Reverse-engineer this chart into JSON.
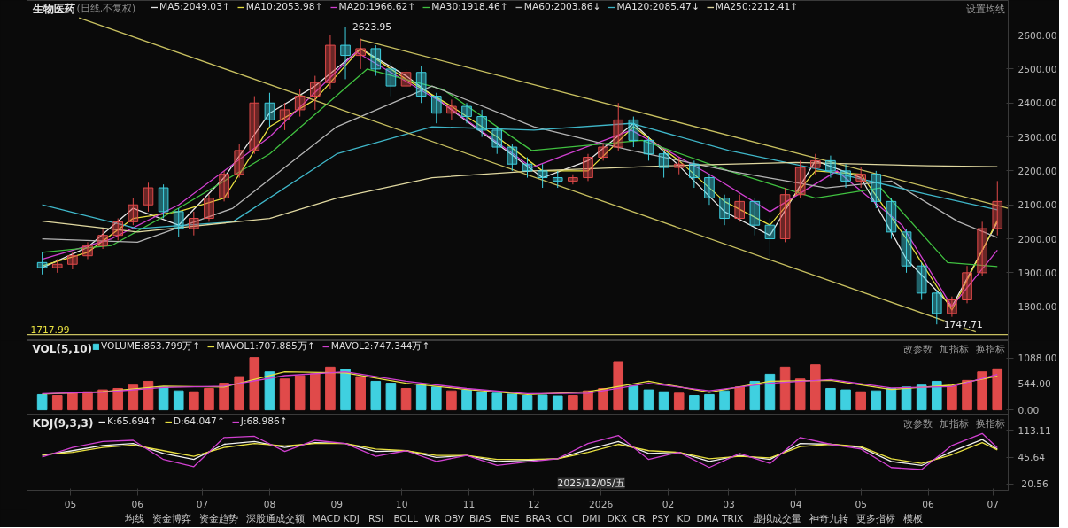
{
  "chart_data": [
    {
      "type": "candlestick",
      "title": "生物医药",
      "subtitle": "(日线,不复权)",
      "legend": "top",
      "tick_labels": "y",
      "grid": false,
      "xlim": [
        "2025-04-11",
        "2026-07-08"
      ],
      "ylim": [
        1700,
        2702
      ],
      "yticks": [
        {
          "value": 1800,
          "label": "1800.00"
        },
        {
          "value": 1900,
          "label": "1900.00"
        },
        {
          "value": 2000,
          "label": "2000.00"
        },
        {
          "value": 2100,
          "label": "2100.00"
        },
        {
          "value": 2200,
          "label": "2200.00"
        },
        {
          "value": 2300,
          "label": "2300.00"
        },
        {
          "value": 2400,
          "label": "2400.00"
        },
        {
          "value": 2500,
          "label": "2500.00"
        },
        {
          "value": 2600,
          "label": "2600.00"
        }
      ],
      "x": [
        "2025-04-18",
        "2025-04-25",
        "2025-05-02",
        "2025-05-09",
        "2025-05-16",
        "2025-05-23",
        "2025-05-30",
        "2025-06-06",
        "2025-06-13",
        "2025-06-20",
        "2025-06-27",
        "2025-07-04",
        "2025-07-11",
        "2025-07-18",
        "2025-07-25",
        "2025-08-01",
        "2025-08-08",
        "2025-08-15",
        "2025-08-22",
        "2025-08-29",
        "2025-09-05",
        "2025-09-12",
        "2025-09-19",
        "2025-09-26",
        "2025-10-03",
        "2025-10-10",
        "2025-10-17",
        "2025-10-24",
        "2025-10-31",
        "2025-11-07",
        "2025-11-14",
        "2025-11-21",
        "2025-11-28",
        "2025-12-05",
        "2025-12-12",
        "2025-12-19",
        "2025-12-26",
        "2026-01-02",
        "2026-01-09",
        "2026-01-16",
        "2026-01-23",
        "2026-01-30",
        "2026-02-06",
        "2026-02-13",
        "2026-02-20",
        "2026-02-27",
        "2026-03-06",
        "2026-03-13",
        "2026-03-20",
        "2026-03-27",
        "2026-04-03",
        "2026-04-10",
        "2026-04-17",
        "2026-04-24",
        "2026-05-01",
        "2026-05-08",
        "2026-05-15",
        "2026-05-22",
        "2026-05-29",
        "2026-06-05",
        "2026-06-12",
        "2026-06-19",
        "2026-06-26",
        "2026-07-03"
      ],
      "ohlc": [
        [
          1930,
          1960,
          1895,
          1915
        ],
        [
          1915,
          1940,
          1900,
          1925
        ],
        [
          1925,
          1960,
          1910,
          1950
        ],
        [
          1950,
          1990,
          1940,
          1980
        ],
        [
          1980,
          2030,
          1970,
          2010
        ],
        [
          2010,
          2060,
          1995,
          2050
        ],
        [
          2050,
          2120,
          2040,
          2100
        ],
        [
          2100,
          2165,
          2080,
          2150
        ],
        [
          2150,
          2160,
          2060,
          2080
        ],
        [
          2080,
          2090,
          2005,
          2030
        ],
        [
          2030,
          2080,
          2010,
          2060
        ],
        [
          2060,
          2130,
          2050,
          2120
        ],
        [
          2120,
          2200,
          2110,
          2190
        ],
        [
          2190,
          2280,
          2180,
          2260
        ],
        [
          2260,
          2420,
          2250,
          2400
        ],
        [
          2400,
          2430,
          2330,
          2350
        ],
        [
          2350,
          2400,
          2320,
          2380
        ],
        [
          2380,
          2440,
          2360,
          2420
        ],
        [
          2420,
          2480,
          2380,
          2460
        ],
        [
          2460,
          2600,
          2440,
          2570
        ],
        [
          2570,
          2623.95,
          2470,
          2540
        ],
        [
          2540,
          2590,
          2500,
          2560
        ],
        [
          2560,
          2570,
          2480,
          2500
        ],
        [
          2500,
          2520,
          2420,
          2450
        ],
        [
          2450,
          2500,
          2440,
          2490
        ],
        [
          2490,
          2510,
          2400,
          2420
        ],
        [
          2420,
          2430,
          2340,
          2370
        ],
        [
          2370,
          2410,
          2350,
          2390
        ],
        [
          2390,
          2400,
          2340,
          2360
        ],
        [
          2360,
          2380,
          2300,
          2320
        ],
        [
          2320,
          2330,
          2250,
          2270
        ],
        [
          2270,
          2280,
          2200,
          2220
        ],
        [
          2220,
          2240,
          2180,
          2200
        ],
        [
          2200,
          2220,
          2150,
          2180
        ],
        [
          2180,
          2200,
          2150,
          2170
        ],
        [
          2170,
          2190,
          2160,
          2180
        ],
        [
          2180,
          2250,
          2170,
          2240
        ],
        [
          2240,
          2280,
          2230,
          2270
        ],
        [
          2270,
          2400,
          2260,
          2350
        ],
        [
          2350,
          2360,
          2270,
          2290
        ],
        [
          2290,
          2300,
          2230,
          2250
        ],
        [
          2250,
          2260,
          2180,
          2210
        ],
        [
          2210,
          2240,
          2190,
          2220
        ],
        [
          2220,
          2230,
          2150,
          2180
        ],
        [
          2180,
          2190,
          2100,
          2120
        ],
        [
          2120,
          2130,
          2040,
          2060
        ],
        [
          2060,
          2130,
          2050,
          2110
        ],
        [
          2110,
          2120,
          2010,
          2040
        ],
        [
          2040,
          2060,
          1940,
          2000
        ],
        [
          2000,
          2150,
          1990,
          2130
        ],
        [
          2130,
          2230,
          2120,
          2210
        ],
        [
          2210,
          2250,
          2190,
          2230
        ],
        [
          2230,
          2245,
          2180,
          2200
        ],
        [
          2200,
          2220,
          2150,
          2170
        ],
        [
          2170,
          2210,
          2150,
          2190
        ],
        [
          2190,
          2200,
          2090,
          2110
        ],
        [
          2110,
          2120,
          2000,
          2020
        ],
        [
          2020,
          2030,
          1900,
          1920
        ],
        [
          1920,
          1930,
          1820,
          1840
        ],
        [
          1840,
          1850,
          1747.71,
          1780
        ],
        [
          1780,
          1830,
          1770,
          1820
        ],
        [
          1820,
          1920,
          1810,
          1900
        ],
        [
          1900,
          2050,
          1890,
          2030
        ],
        [
          2030,
          2170,
          2010,
          2110
        ]
      ],
      "series": [
        {
          "type": "line",
          "name": "MA5:2049.03↑",
          "color": "#e6e6e6",
          "x": [
            "2025-04-18",
            "2025-05-09",
            "2025-05-30",
            "2025-06-20",
            "2025-07-11",
            "2025-08-01",
            "2025-08-22",
            "2025-09-12",
            "2025-10-03",
            "2025-10-24",
            "2025-11-14",
            "2025-12-05",
            "2025-12-26",
            "2026-01-16",
            "2026-02-06",
            "2026-02-27",
            "2026-03-20",
            "2026-04-10",
            "2026-05-01",
            "2026-05-22",
            "2026-06-12",
            "2026-07-03"
          ],
          "values": [
            1915,
            1975,
            2090,
            2040,
            2180,
            2370,
            2450,
            2560,
            2480,
            2380,
            2280,
            2180,
            2230,
            2340,
            2215,
            2080,
            2010,
            2230,
            2180,
            1940,
            1800,
            2049.03
          ]
        },
        {
          "type": "line",
          "name": "MA10:2053.98↑",
          "color": "#e8e040",
          "x": [
            "2025-04-18",
            "2025-05-09",
            "2025-05-30",
            "2025-06-20",
            "2025-07-11",
            "2025-08-01",
            "2025-08-22",
            "2025-09-12",
            "2025-10-03",
            "2025-10-24",
            "2025-11-14",
            "2025-12-05",
            "2025-12-26",
            "2026-01-16",
            "2026-02-06",
            "2026-02-27",
            "2026-03-20",
            "2026-04-10",
            "2026-05-01",
            "2026-05-22",
            "2026-06-12",
            "2026-07-03"
          ],
          "values": [
            1920,
            1960,
            2060,
            2080,
            2120,
            2330,
            2410,
            2560,
            2470,
            2390,
            2300,
            2200,
            2200,
            2330,
            2230,
            2110,
            2040,
            2200,
            2190,
            2000,
            1790,
            2053.98
          ]
        },
        {
          "type": "line",
          "name": "MA20:1966.62↑",
          "color": "#d040d0",
          "x": [
            "2025-04-18",
            "2025-05-20",
            "2025-06-20",
            "2025-08-01",
            "2025-09-10",
            "2025-10-20",
            "2025-11-30",
            "2026-01-15",
            "2026-02-20",
            "2026-03-20",
            "2026-04-20",
            "2026-05-20",
            "2026-06-12",
            "2026-07-03"
          ],
          "values": [
            1940,
            2000,
            2100,
            2300,
            2550,
            2400,
            2210,
            2320,
            2190,
            2080,
            2200,
            2040,
            1800,
            1966.62
          ]
        },
        {
          "type": "line",
          "name": "MA30:1918.46↑",
          "color": "#40c040",
          "x": [
            "2025-04-18",
            "2025-05-20",
            "2025-06-20",
            "2025-08-01",
            "2025-09-15",
            "2025-10-20",
            "2025-11-30",
            "2026-01-20",
            "2026-03-01",
            "2026-04-10",
            "2026-05-10",
            "2026-06-10",
            "2026-07-03"
          ],
          "values": [
            1960,
            1980,
            2090,
            2250,
            2500,
            2440,
            2260,
            2290,
            2200,
            2120,
            2150,
            1930,
            1918.46
          ]
        },
        {
          "type": "line",
          "name": "MA60:2003.86↓",
          "color": "#b4b4b4",
          "x": [
            "2025-04-18",
            "2025-06-01",
            "2025-07-15",
            "2025-09-01",
            "2025-10-15",
            "2025-12-01",
            "2026-01-15",
            "2026-03-01",
            "2026-04-15",
            "2026-05-15",
            "2026-06-15",
            "2026-07-03"
          ],
          "values": [
            2000,
            1990,
            2090,
            2330,
            2450,
            2330,
            2260,
            2200,
            2150,
            2170,
            2050,
            2003.86
          ]
        },
        {
          "type": "line",
          "name": "MA120:2085.47↓",
          "color": "#3fb6c8",
          "x": [
            "2025-04-18",
            "2025-06-01",
            "2025-07-15",
            "2025-09-01",
            "2025-10-15",
            "2025-12-01",
            "2026-01-15",
            "2026-03-01",
            "2026-04-15",
            "2026-06-01",
            "2026-07-03"
          ],
          "values": [
            2100,
            2030,
            2050,
            2250,
            2330,
            2320,
            2340,
            2260,
            2200,
            2130,
            2085.47
          ]
        },
        {
          "type": "line",
          "name": "MA250:2212.41↑",
          "color": "#e0d8a0",
          "x": [
            "2025-04-18",
            "2025-06-01",
            "2025-08-01",
            "2025-09-01",
            "2025-10-15",
            "2025-12-01",
            "2026-02-01",
            "2026-04-01",
            "2026-06-01",
            "2026-07-03"
          ],
          "values": [
            2052,
            2020,
            2060,
            2120,
            2180,
            2200,
            2215,
            2225,
            2215,
            2212.41
          ]
        },
        {
          "type": "line",
          "color": "#c8c060",
          "x": [
            "2025-05-05",
            "2026-06-23"
          ],
          "values": [
            2651,
            1726
          ]
        },
        {
          "type": "line",
          "color": "#c8c060",
          "x": [
            "2025-09-12",
            "2026-07-08"
          ],
          "values": [
            2587,
            2090
          ]
        }
      ],
      "ref_lines": [
        {
          "axis": "y",
          "value": 1717.99,
          "label": "1717.99",
          "color": "#c8c060"
        }
      ],
      "annotations": [
        {
          "text": "2623.95",
          "x": "2025-09-05",
          "y": 2623.95
        },
        {
          "text": "1747.71",
          "x": "2026-06-05",
          "y": 1747.71
        },
        "设置均线"
      ]
    },
    {
      "type": "bar",
      "title": "VOL(5,10)",
      "legend": "top",
      "tick_labels": "y",
      "grid": false,
      "xlim": [
        "2025-04-11",
        "2026-07-08"
      ],
      "ylim": [
        -110,
        1457
      ],
      "yticks": [
        {
          "value": 0,
          "label": "0.00"
        },
        {
          "value": 544,
          "label": "544.00"
        },
        {
          "value": 1088,
          "label": "1088.00"
        }
      ],
      "x": [
        "2025-04-18",
        "2025-04-25",
        "2025-05-02",
        "2025-05-09",
        "2025-05-16",
        "2025-05-23",
        "2025-05-30",
        "2025-06-06",
        "2025-06-13",
        "2025-06-20",
        "2025-06-27",
        "2025-07-04",
        "2025-07-11",
        "2025-07-18",
        "2025-07-25",
        "2025-08-01",
        "2025-08-08",
        "2025-08-15",
        "2025-08-22",
        "2025-08-29",
        "2025-09-05",
        "2025-09-12",
        "2025-09-19",
        "2025-09-26",
        "2025-10-03",
        "2025-10-10",
        "2025-10-17",
        "2025-10-24",
        "2025-10-31",
        "2025-11-07",
        "2025-11-14",
        "2025-11-21",
        "2025-11-28",
        "2025-12-05",
        "2025-12-12",
        "2025-12-19",
        "2025-12-26",
        "2026-01-02",
        "2026-01-09",
        "2026-01-16",
        "2026-01-23",
        "2026-01-30",
        "2026-02-06",
        "2026-02-13",
        "2026-02-20",
        "2026-02-27",
        "2026-03-06",
        "2026-03-13",
        "2026-03-20",
        "2026-03-27",
        "2026-04-03",
        "2026-04-10",
        "2026-04-17",
        "2026-04-24",
        "2026-05-01",
        "2026-05-08",
        "2026-05-15",
        "2026-05-22",
        "2026-05-29",
        "2026-06-05",
        "2026-06-12",
        "2026-06-19",
        "2026-06-26",
        "2026-07-03"
      ],
      "series": [
        {
          "type": "bar",
          "name": "VOLUME:863.799万↑",
          "colors": [
            "#3fd0e0",
            "#e04a4a",
            "#e04a4a",
            "#e04a4a",
            "#e04a4a",
            "#e04a4a",
            "#e04a4a",
            "#e04a4a",
            "#3fd0e0",
            "#3fd0e0",
            "#e04a4a",
            "#e04a4a",
            "#e04a4a",
            "#e04a4a",
            "#e04a4a",
            "#3fd0e0",
            "#e04a4a",
            "#e04a4a",
            "#e04a4a",
            "#e04a4a",
            "#3fd0e0",
            "#e04a4a",
            "#3fd0e0",
            "#3fd0e0",
            "#e04a4a",
            "#3fd0e0",
            "#3fd0e0",
            "#e04a4a",
            "#3fd0e0",
            "#3fd0e0",
            "#3fd0e0",
            "#3fd0e0",
            "#3fd0e0",
            "#3fd0e0",
            "#3fd0e0",
            "#e04a4a",
            "#e04a4a",
            "#e04a4a",
            "#e04a4a",
            "#3fd0e0",
            "#3fd0e0",
            "#3fd0e0",
            "#e04a4a",
            "#3fd0e0",
            "#3fd0e0",
            "#3fd0e0",
            "#e04a4a",
            "#3fd0e0",
            "#3fd0e0",
            "#e04a4a",
            "#e04a4a",
            "#e04a4a",
            "#3fd0e0",
            "#3fd0e0",
            "#e04a4a",
            "#3fd0e0",
            "#3fd0e0",
            "#3fd0e0",
            "#3fd0e0",
            "#3fd0e0",
            "#e04a4a",
            "#e04a4a",
            "#e04a4a",
            "#e04a4a"
          ],
          "values": [
            320,
            300,
            350,
            380,
            420,
            450,
            520,
            600,
            480,
            400,
            380,
            450,
            560,
            700,
            1100,
            800,
            650,
            720,
            760,
            900,
            850,
            700,
            600,
            560,
            450,
            520,
            480,
            400,
            420,
            380,
            350,
            330,
            300,
            310,
            290,
            300,
            400,
            450,
            1000,
            500,
            420,
            380,
            350,
            300,
            320,
            400,
            480,
            600,
            750,
            900,
            650,
            950,
            450,
            420,
            380,
            400,
            450,
            480,
            520,
            600,
            500,
            620,
            800,
            863.799
          ]
        },
        {
          "type": "line",
          "name": "MAVOL1:707.885万↑",
          "color": "#e8e040",
          "x": [
            "2025-04-18",
            "2025-05-16",
            "2025-06-13",
            "2025-07-11",
            "2025-08-08",
            "2025-09-05",
            "2025-10-03",
            "2025-10-31",
            "2025-11-28",
            "2025-12-26",
            "2026-01-23",
            "2026-02-20",
            "2026-03-20",
            "2026-04-17",
            "2026-05-15",
            "2026-06-12",
            "2026-07-03"
          ],
          "values": [
            330,
            380,
            500,
            480,
            800,
            780,
            560,
            430,
            320,
            380,
            600,
            370,
            600,
            620,
            430,
            520,
            707.885
          ]
        },
        {
          "type": "line",
          "name": "MAVOL2:747.344万↑",
          "color": "#d040d0",
          "x": [
            "2025-04-18",
            "2025-05-16",
            "2025-06-13",
            "2025-07-11",
            "2025-08-08",
            "2025-09-05",
            "2025-10-03",
            "2025-10-31",
            "2025-11-28",
            "2025-12-26",
            "2026-01-23",
            "2026-02-20",
            "2026-03-20",
            "2026-04-17",
            "2026-05-15",
            "2026-06-12",
            "2026-07-03"
          ],
          "values": [
            340,
            370,
            470,
            500,
            720,
            800,
            600,
            450,
            340,
            350,
            560,
            400,
            560,
            640,
            460,
            490,
            747.344
          ]
        }
      ],
      "annotations": [
        "改参数",
        "加指标",
        "换指标"
      ]
    },
    {
      "type": "line",
      "title": "KDJ(9,3,3)",
      "legend": "top",
      "grid": false,
      "xlim": [
        "2025-04-11",
        "2026-07-08"
      ],
      "ylim": [
        -37,
        151
      ],
      "xticks": [
        {
          "value": "2025-05-01",
          "label": "05"
        },
        {
          "value": "2025-06-01",
          "label": "06"
        },
        {
          "value": "2025-07-01",
          "label": "07"
        },
        {
          "value": "2025-08-01",
          "label": "08"
        },
        {
          "value": "2025-09-01",
          "label": "09"
        },
        {
          "value": "2025-10-01",
          "label": "10"
        },
        {
          "value": "2025-11-01",
          "label": "11"
        },
        {
          "value": "2025-12-01",
          "label": "12"
        },
        {
          "value": "2026-01-01",
          "label": "2026"
        },
        {
          "value": "2026-02-01",
          "label": "02"
        },
        {
          "value": "2026-03-01",
          "label": "03"
        },
        {
          "value": "2026-04-01",
          "label": "04"
        },
        {
          "value": "2026-05-01",
          "label": "05"
        },
        {
          "value": "2026-06-01",
          "label": "06"
        },
        {
          "value": "2026-07-01",
          "label": "07"
        }
      ],
      "yticks": [
        {
          "value": -20.56,
          "label": "-20.56"
        },
        {
          "value": 45.64,
          "label": "45.64"
        },
        {
          "value": 113.11,
          "label": "113.11"
        }
      ],
      "x": [
        "2025-04-18",
        "2025-05-02",
        "2025-05-16",
        "2025-05-30",
        "2025-06-13",
        "2025-06-27",
        "2025-07-11",
        "2025-07-25",
        "2025-08-08",
        "2025-08-22",
        "2025-09-05",
        "2025-09-19",
        "2025-10-03",
        "2025-10-17",
        "2025-10-31",
        "2025-11-14",
        "2025-11-28",
        "2025-12-12",
        "2025-12-26",
        "2026-01-09",
        "2026-01-23",
        "2026-02-06",
        "2026-02-20",
        "2026-03-06",
        "2026-03-20",
        "2026-04-03",
        "2026-04-17",
        "2026-05-01",
        "2026-05-15",
        "2026-05-29",
        "2026-06-12",
        "2026-06-26",
        "2026-07-03"
      ],
      "series": [
        {
          "name": "K:65.694↑",
          "color": "#f0f0f0",
          "values": [
            50,
            62,
            75,
            80,
            55,
            40,
            78,
            85,
            70,
            82,
            80,
            60,
            62,
            45,
            50,
            35,
            38,
            42,
            65,
            85,
            55,
            58,
            35,
            50,
            40,
            80,
            78,
            70,
            35,
            25,
            60,
            90,
            65.694
          ]
        },
        {
          "name": "D:64.047↑",
          "color": "#e8e040",
          "values": [
            52,
            58,
            70,
            76,
            62,
            48,
            70,
            80,
            74,
            80,
            80,
            66,
            62,
            50,
            50,
            40,
            40,
            42,
            58,
            78,
            62,
            58,
            42,
            48,
            44,
            72,
            78,
            72,
            42,
            30,
            52,
            82,
            64.047
          ]
        },
        {
          "name": "J:68.986↑",
          "color": "#d040d0",
          "values": [
            46,
            70,
            85,
            88,
            40,
            22,
            95,
            98,
            60,
            88,
            80,
            48,
            62,
            35,
            50,
            25,
            34,
            42,
            80,
            100,
            40,
            58,
            20,
            55,
            30,
            95,
            78,
            66,
            20,
            15,
            75,
            105,
            68.986
          ]
        }
      ],
      "annotations": [
        "2025/12/05/五",
        "改参数",
        "加指标",
        "换指标",
        "均线",
        "资金博弈",
        "资金趋势",
        "深股通成交额",
        "MACD",
        "KDJ",
        "RSI",
        "BOLL",
        "WR",
        "OBV",
        "BIAS",
        "ENE",
        "BRAR",
        "CCI",
        "DMI",
        "DKX",
        "CR",
        "PSY",
        "KD",
        "DMA",
        "TRIX",
        "虚拟成交量",
        "神奇九转",
        "更多指标",
        "模板"
      ]
    }
  ]
}
